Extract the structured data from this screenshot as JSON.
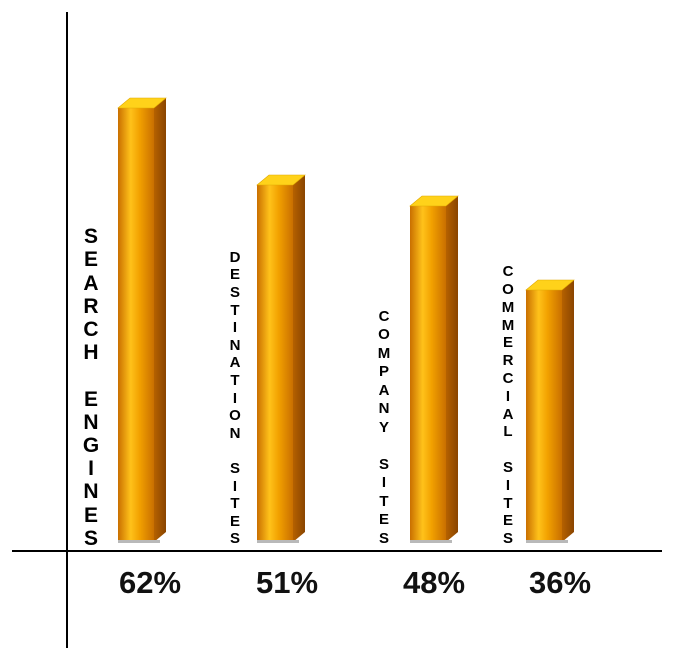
{
  "chart_data": {
    "type": "bar",
    "style": "3d-cylinder-like bars",
    "categories": [
      "SEARCH ENGINES",
      "DESTINATION SITES",
      "COMPANY SITES",
      "COMMERCIAL SITES"
    ],
    "values": [
      62,
      51,
      48,
      36
    ],
    "value_labels": [
      "62%",
      "51%",
      "48%",
      "36%"
    ],
    "title": "",
    "xlabel": "",
    "ylabel": "",
    "ylim": [
      0,
      70
    ],
    "grid": false,
    "legend": "none",
    "colors": {
      "bar_front_light": "#ffc21a",
      "bar_front_mid": "#f2a100",
      "bar_front_dark": "#c96f00",
      "bar_side": "#9c5200",
      "bar_top": "#ffd21a",
      "axis": "#000000",
      "label": "#000000"
    }
  }
}
